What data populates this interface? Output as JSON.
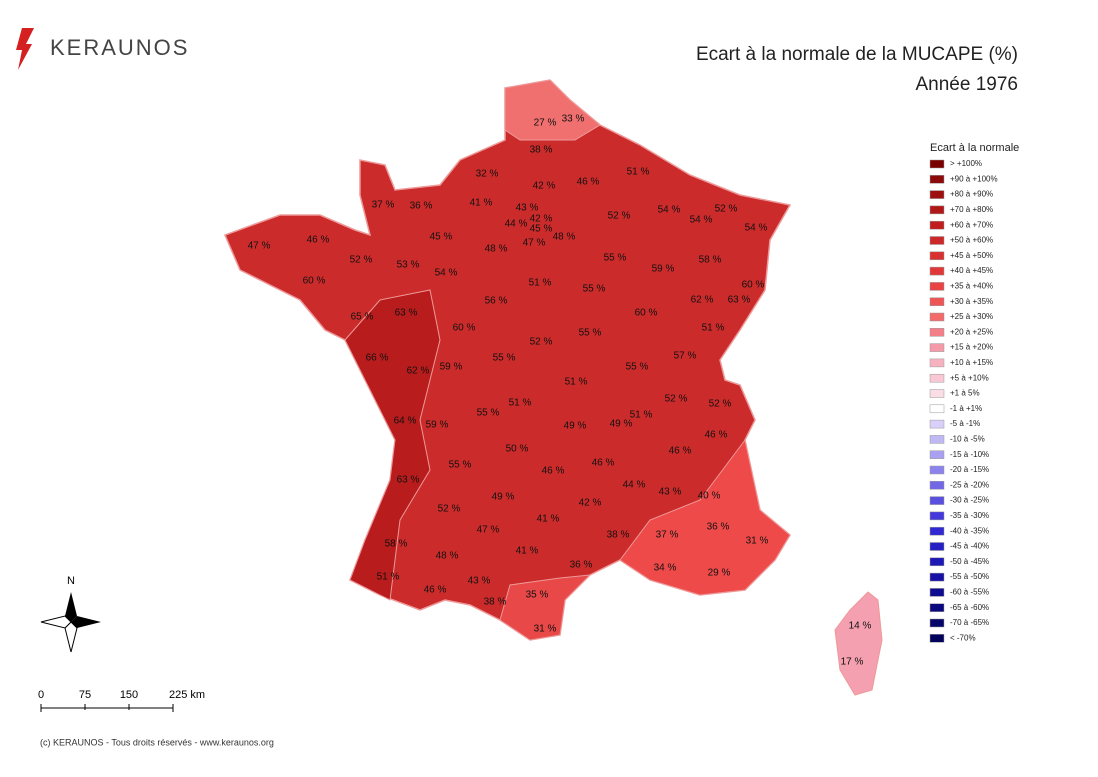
{
  "logo": "KERAUNOS",
  "title": "Ecart à la normale de la MUCAPE (%)",
  "subtitle": "Année 1976",
  "legend": {
    "title": "Ecart à la normale",
    "items": [
      {
        "label": "> +100%",
        "color": "#7a0000"
      },
      {
        "label": "+90 à +100%",
        "color": "#8b0a0a"
      },
      {
        "label": "+80 à +90%",
        "color": "#9e1010"
      },
      {
        "label": "+70 à +80%",
        "color": "#b01818"
      },
      {
        "label": "+60 à +70%",
        "color": "#c01e1e"
      },
      {
        "label": "+50 à +60%",
        "color": "#cc2828"
      },
      {
        "label": "+45 à +50%",
        "color": "#d83030"
      },
      {
        "label": "+40 à +45%",
        "color": "#e03838"
      },
      {
        "label": "+35 à +40%",
        "color": "#e84444"
      },
      {
        "label": "+30 à +35%",
        "color": "#ee5555"
      },
      {
        "label": "+25 à +30%",
        "color": "#f26a6a"
      },
      {
        "label": "+20 à +25%",
        "color": "#f47f88"
      },
      {
        "label": "+15 à +20%",
        "color": "#f59aa8"
      },
      {
        "label": "+10 à +15%",
        "color": "#f7b2c0"
      },
      {
        "label": "+5 à +10%",
        "color": "#f9c8d4"
      },
      {
        "label": "+1 à 5%",
        "color": "#fbdde6"
      },
      {
        "label": "-1 à +1%",
        "color": "#ffffff"
      },
      {
        "label": "-5 à -1%",
        "color": "#d8d0f8"
      },
      {
        "label": "-10 à -5%",
        "color": "#c0b8f4"
      },
      {
        "label": "-15 à -10%",
        "color": "#a8a0f0"
      },
      {
        "label": "-20 à -15%",
        "color": "#8c84ec"
      },
      {
        "label": "-25 à -20%",
        "color": "#7268e6"
      },
      {
        "label": "-30 à -25%",
        "color": "#5a50e0"
      },
      {
        "label": "-35 à -30%",
        "color": "#4438da"
      },
      {
        "label": "-40 à -35%",
        "color": "#3028d0"
      },
      {
        "label": "-45 à -40%",
        "color": "#2620c4"
      },
      {
        "label": "-50 à -45%",
        "color": "#1e18b4"
      },
      {
        "label": "-55 à -50%",
        "color": "#1610a4"
      },
      {
        "label": "-60 à -55%",
        "color": "#100c90"
      },
      {
        "label": "-65 à -60%",
        "color": "#0a087c"
      },
      {
        "label": "-70 à -65%",
        "color": "#060668"
      },
      {
        "label": "< -70%",
        "color": "#02025a"
      }
    ]
  },
  "departments": [
    "27 %",
    "33 %",
    "38 %",
    "32 %",
    "42 %",
    "46 %",
    "51 %",
    "37 %",
    "36 %",
    "41 %",
    "43 %",
    "44 %",
    "42 %",
    "45 %",
    "47 %",
    "48 %",
    "52 %",
    "54 %",
    "54 %",
    "52 %",
    "54 %",
    "47 %",
    "46 %",
    "45 %",
    "48 %",
    "52 %",
    "53 %",
    "54 %",
    "55 %",
    "59 %",
    "58 %",
    "60 %",
    "51 %",
    "55 %",
    "56 %",
    "60 %",
    "62 %",
    "63 %",
    "65 %",
    "63 %",
    "60 %",
    "60 %",
    "55 %",
    "52 %",
    "51 %",
    "66 %",
    "62 %",
    "59 %",
    "55 %",
    "55 %",
    "57 %",
    "51 %",
    "52 %",
    "52 %",
    "51 %",
    "55 %",
    "64 %",
    "59 %",
    "49 %",
    "49 %",
    "51 %",
    "46 %",
    "50 %",
    "46 %",
    "46 %",
    "55 %",
    "46 %",
    "63 %",
    "44 %",
    "43 %",
    "40 %",
    "49 %",
    "42 %",
    "52 %",
    "41 %",
    "47 %",
    "36 %",
    "31 %",
    "38 %",
    "37 %",
    "58 %",
    "48 %",
    "41 %",
    "36 %",
    "34 %",
    "29 %",
    "51 %",
    "43 %",
    "46 %",
    "35 %",
    "38 %",
    "31 %",
    "14 %",
    "17 %"
  ],
  "north": "N",
  "scale": [
    "0",
    "75",
    "150",
    "225 km"
  ],
  "footer": "(c) KERAUNOS - Tous droits réservés - www.keraunos.org"
}
